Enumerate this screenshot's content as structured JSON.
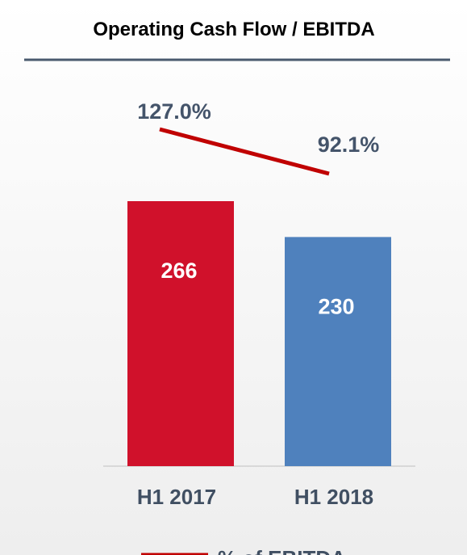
{
  "chart_data": {
    "type": "bar",
    "title": "Operating Cash Flow / EBITDA",
    "categories": [
      "H1 2017",
      "H1 2018"
    ],
    "values": [
      266,
      230
    ],
    "colors": [
      "#d0112b",
      "#4f81bd"
    ],
    "line": {
      "name": "% of EBITDA",
      "color": "#c00000",
      "values": [
        127.0,
        92.1
      ],
      "value_labels": [
        "127.0%",
        "92.1%"
      ]
    }
  }
}
